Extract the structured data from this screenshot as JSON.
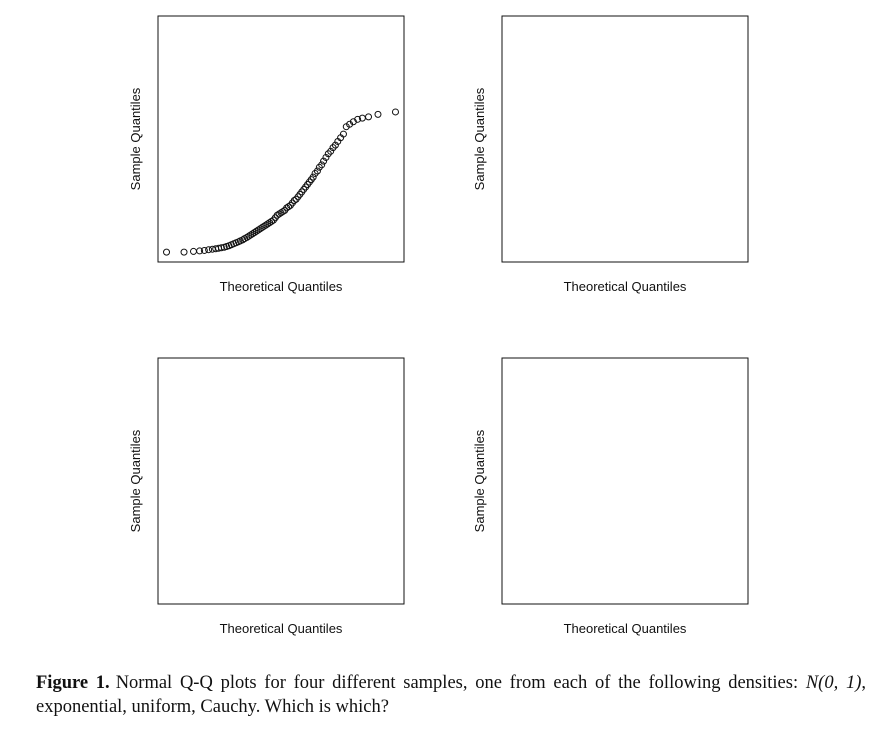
{
  "chart_data": [
    {
      "type": "scatter",
      "panel": "top-left",
      "xlabel": "Theoretical Quantiles",
      "ylabel": "Sample Quantiles",
      "xlim": [
        -2.6,
        2.6
      ],
      "ylim": [
        0,
        100
      ],
      "axes_ticks": false,
      "marker": "open-circle",
      "x": [
        -2.42,
        -2.05,
        -1.85,
        -1.72,
        -1.62,
        -1.53,
        -1.45,
        -1.38,
        -1.32,
        -1.26,
        -1.2,
        -1.15,
        -1.1,
        -1.05,
        -1.0,
        -0.95,
        -0.9,
        -0.86,
        -0.81,
        -0.77,
        -0.72,
        -0.68,
        -0.64,
        -0.6,
        -0.56,
        -0.52,
        -0.48,
        -0.44,
        -0.4,
        -0.36,
        -0.32,
        -0.28,
        -0.24,
        -0.2,
        -0.16,
        -0.12,
        -0.08,
        -0.04,
        0.0,
        0.04,
        0.08,
        0.12,
        0.16,
        0.2,
        0.24,
        0.28,
        0.32,
        0.36,
        0.4,
        0.44,
        0.48,
        0.52,
        0.56,
        0.6,
        0.64,
        0.68,
        0.72,
        0.77,
        0.81,
        0.86,
        0.9,
        0.95,
        1.0,
        1.05,
        1.1,
        1.15,
        1.2,
        1.26,
        1.32,
        1.38,
        1.45,
        1.53,
        1.62,
        1.72,
        1.85,
        2.05,
        2.42
      ],
      "y": [
        4,
        4,
        4.3,
        4.5,
        4.7,
        5,
        5.2,
        5.4,
        5.6,
        5.8,
        6,
        6.3,
        6.6,
        7,
        7.4,
        7.8,
        8.2,
        8.6,
        9,
        9.5,
        10,
        10.5,
        11,
        11.5,
        12,
        12.5,
        13,
        13.5,
        14,
        14.5,
        15,
        15.5,
        16,
        16.5,
        17,
        18,
        19,
        19.5,
        20,
        20.5,
        21,
        22,
        22.5,
        23,
        24,
        25,
        25.5,
        26.5,
        27.5,
        28.5,
        29.5,
        30.5,
        31.5,
        32.5,
        33.5,
        34.5,
        36,
        37,
        38.5,
        39.5,
        41,
        42.5,
        44,
        45,
        46.5,
        47.5,
        49,
        50.5,
        52,
        55,
        56,
        57,
        58,
        58.5,
        59,
        60,
        61
      ]
    },
    {
      "type": "scatter",
      "panel": "top-right",
      "xlabel": "Theoretical Quantiles",
      "ylabel": "Sample Quantiles",
      "xlim": [
        -2.6,
        2.6
      ],
      "ylim": [
        0,
        100
      ],
      "axes_ticks": false,
      "marker": "open-circle"
    },
    {
      "type": "scatter",
      "panel": "bottom-left",
      "xlabel": "Theoretical Quantiles",
      "ylabel": "Sample Quantiles",
      "xlim": [
        -2.6,
        2.6
      ],
      "ylim": [
        0,
        100
      ],
      "axes_ticks": false,
      "marker": "open-circle"
    },
    {
      "type": "scatter",
      "panel": "bottom-right",
      "xlabel": "Theoretical Quantiles",
      "ylabel": "Sample Quantiles",
      "xlim": [
        -2.6,
        2.6
      ],
      "ylim": [
        0,
        100
      ],
      "axes_ticks": false,
      "marker": "open-circle"
    }
  ],
  "caption": {
    "label": "Figure 1.",
    "text_1": "Normal Q-Q plots for four different samples, one from each of the following densities: ",
    "math": "N(0, 1)",
    "text_2": ", exponential, uniform, Cauchy. Which is which?"
  }
}
